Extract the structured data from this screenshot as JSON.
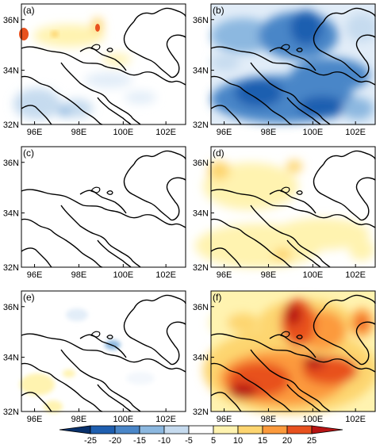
{
  "panels": [
    {
      "id": "a",
      "label": "(a)"
    },
    {
      "id": "b",
      "label": "(b)"
    },
    {
      "id": "c",
      "label": "(c)"
    },
    {
      "id": "d",
      "label": "(d)"
    },
    {
      "id": "e",
      "label": "(e)"
    },
    {
      "id": "f",
      "label": "(f)"
    }
  ],
  "axes": {
    "lat_ticks": [
      "36N",
      "34N",
      "32N"
    ],
    "lon_ticks": [
      "96E",
      "98E",
      "100E",
      "102E"
    ]
  },
  "colorbar": {
    "ticks": [
      "-25",
      "-20",
      "-15",
      "-10",
      "-5",
      "5",
      "10",
      "15",
      "20",
      "25"
    ],
    "colors": [
      "#08306b",
      "#1f5fb0",
      "#4a86c8",
      "#8cb8e0",
      "#c6dbef",
      "#ffffff",
      "#fff3b0",
      "#fdd570",
      "#fc9a3c",
      "#e8511e",
      "#b81414"
    ]
  }
}
